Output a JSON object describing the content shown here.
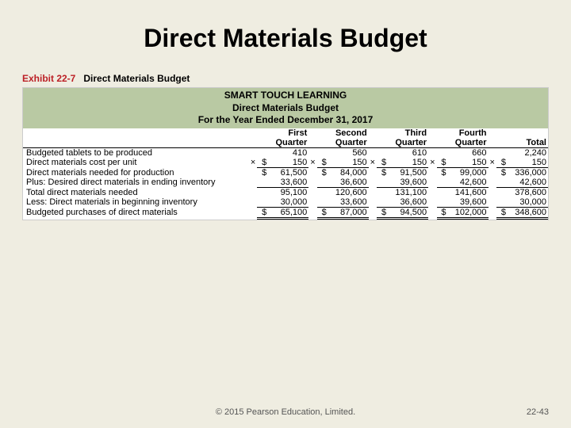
{
  "slide": {
    "title": "Direct Materials Budget"
  },
  "exhibit": {
    "number": "Exhibit 22-7",
    "title": "Direct Materials Budget"
  },
  "header": {
    "company": "SMART TOUCH LEARNING",
    "report": "Direct Materials Budget",
    "period": "For the Year Ended December 31, 2017"
  },
  "colheads": {
    "q1a": "First",
    "q1b": "Quarter",
    "q2a": "Second",
    "q2b": "Quarter",
    "q3a": "Third",
    "q3b": "Quarter",
    "q4a": "Fourth",
    "q4b": "Quarter",
    "tot": "Total"
  },
  "rows": {
    "r0": {
      "label": "Budgeted tablets to be produced",
      "q1": "410",
      "q2": "560",
      "q3": "610",
      "q4": "660",
      "tot": "2,240"
    },
    "r1": {
      "label": "Direct materials cost per unit",
      "q1": "150",
      "q2": "150",
      "q3": "150",
      "q4": "150",
      "tot": "150"
    },
    "r2": {
      "label": "Direct materials needed for production",
      "q1": "61,500",
      "q2": "84,000",
      "q3": "91,500",
      "q4": "99,000",
      "tot": "336,000"
    },
    "r3": {
      "label": "Plus: Desired direct materials in ending inventory",
      "q1": "33,600",
      "q2": "36,600",
      "q3": "39,600",
      "q4": "42,600",
      "tot": "42,600"
    },
    "r4": {
      "label": "Total direct materials needed",
      "q1": "95,100",
      "q2": "120,600",
      "q3": "131,100",
      "q4": "141,600",
      "tot": "378,600"
    },
    "r5": {
      "label": "Less: Direct materials in beginning inventory",
      "q1": "30,000",
      "q2": "33,600",
      "q3": "36,600",
      "q4": "39,600",
      "tot": "30,000"
    },
    "r6": {
      "label": "Budgeted purchases of direct materials",
      "q1": "65,100",
      "q2": "87,000",
      "q3": "94,500",
      "q4": "102,000",
      "tot": "348,600"
    }
  },
  "sym": {
    "times": "×",
    "dollar": "$"
  },
  "footer": {
    "copyright": "© 2015 Pearson Education, Limited.",
    "page": "22-43"
  }
}
